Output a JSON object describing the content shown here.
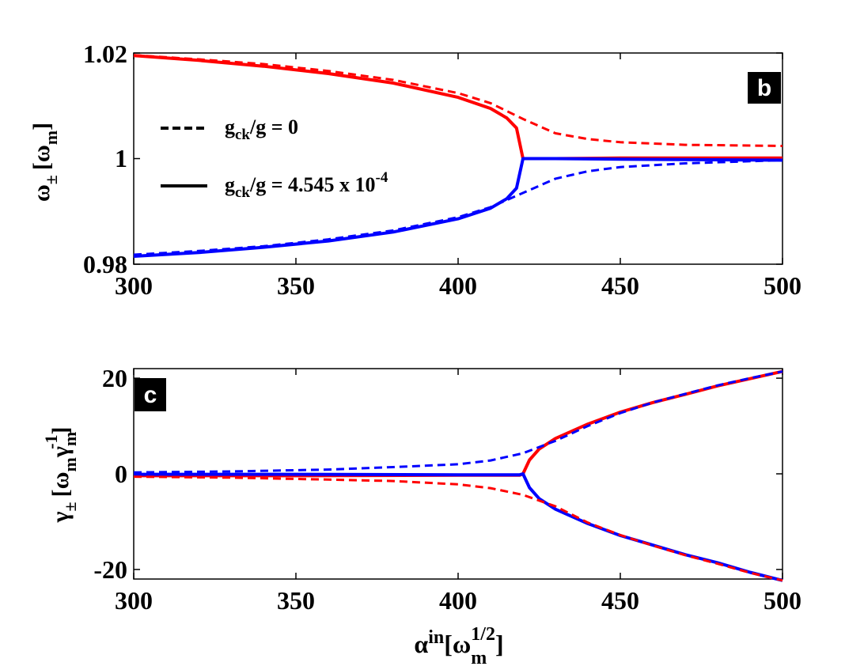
{
  "colors": {
    "upper_branch": "#ff0000",
    "lower_branch": "#0000ff",
    "axes": "#000000",
    "tag_bg": "#000000"
  },
  "chart_data": [
    {
      "type": "line",
      "panel_label": "b",
      "ylabel": {
        "main": "ω",
        "sub": "±",
        "open": "[ω",
        "unit_sub": "m",
        "close": "]"
      },
      "xlim": [
        300,
        500
      ],
      "ylim": [
        0.98,
        1.02
      ],
      "x_ticks": [
        "300",
        "350",
        "400",
        "450",
        "500"
      ],
      "y_ticks": [
        "0.98",
        "1",
        "1.02"
      ],
      "legend": {
        "position": "upper-left",
        "entries": [
          {
            "style": "dashed",
            "main": "g",
            "sub": "ck",
            "rest": "/g = 0",
            "sup": ""
          },
          {
            "style": "solid",
            "main": "g",
            "sub": "ck",
            "rest": "/g = 4.545 x 10",
            "sup": "-4"
          }
        ]
      },
      "series": [
        {
          "style": "solid",
          "color": "red",
          "x": [
            300,
            320,
            340,
            360,
            380,
            400,
            410,
            415,
            418,
            420,
            430,
            450,
            470,
            500
          ],
          "y": [
            1.0195,
            1.0186,
            1.0175,
            1.0161,
            1.0143,
            1.0116,
            1.0095,
            1.0077,
            1.0058,
            1.0,
            1.0,
            1.0001,
            1.0001,
            1.0001
          ]
        },
        {
          "style": "solid",
          "color": "blue",
          "x": [
            300,
            320,
            340,
            360,
            380,
            400,
            410,
            415,
            418,
            420,
            430,
            450,
            470,
            500
          ],
          "y": [
            0.9815,
            0.9822,
            0.9832,
            0.9844,
            0.9861,
            0.9886,
            0.9906,
            0.9924,
            0.9944,
            1.0,
            1.0,
            0.9999,
            0.9998,
            0.9997
          ]
        },
        {
          "style": "dashed",
          "color": "red",
          "x": [
            300,
            320,
            340,
            360,
            380,
            400,
            410,
            420,
            430,
            440,
            450,
            470,
            500
          ],
          "y": [
            1.0196,
            1.0188,
            1.0179,
            1.0166,
            1.0149,
            1.0124,
            1.0105,
            1.0075,
            1.0048,
            1.0037,
            1.0031,
            1.0026,
            1.0024
          ]
        },
        {
          "style": "dashed",
          "color": "blue",
          "x": [
            300,
            320,
            340,
            360,
            380,
            400,
            410,
            420,
            430,
            440,
            450,
            470,
            500
          ],
          "y": [
            0.9818,
            0.9825,
            0.9834,
            0.9847,
            0.9864,
            0.9889,
            0.9908,
            0.9935,
            0.9962,
            0.9976,
            0.9984,
            0.9991,
            0.9997
          ]
        }
      ]
    },
    {
      "type": "line",
      "panel_label": "c",
      "ylabel": {
        "main": "γ",
        "sub": "±",
        "open": "[ω",
        "unit_sub": "m",
        "mid": "γ",
        "unit_sub2": "m",
        "unit_sup2": "-1",
        "close": "]"
      },
      "xlabel": {
        "main": "α",
        "sup": "in",
        "open": "[ω",
        "unit_sub": "m",
        "unit_sup": "1/2",
        "close": "]"
      },
      "xlim": [
        300,
        500
      ],
      "ylim": [
        -22,
        22
      ],
      "x_ticks": [
        "300",
        "350",
        "400",
        "450",
        "500"
      ],
      "y_ticks": [
        "-20",
        "0",
        "20"
      ],
      "series": [
        {
          "style": "solid",
          "color": "red",
          "name": "upper",
          "x": [
            300,
            350,
            400,
            410,
            419,
            420,
            422,
            425,
            430,
            440,
            450,
            460,
            470,
            480,
            490,
            500
          ],
          "y": [
            -0.4,
            -0.4,
            -0.3,
            -0.3,
            -0.3,
            0.0,
            2.9,
            5.2,
            7.4,
            10.4,
            12.9,
            14.9,
            16.6,
            18.4,
            19.9,
            21.4
          ]
        },
        {
          "style": "solid",
          "color": "blue",
          "name": "lower",
          "x": [
            300,
            350,
            400,
            410,
            419,
            420,
            422,
            425,
            430,
            440,
            450,
            460,
            470,
            480,
            490,
            500
          ],
          "y": [
            -0.1,
            -0.1,
            -0.2,
            -0.2,
            -0.2,
            0.0,
            -2.9,
            -5.2,
            -7.4,
            -10.4,
            -12.9,
            -14.9,
            -16.9,
            -18.6,
            -20.6,
            -22.3
          ]
        },
        {
          "style": "dashed",
          "color": "red",
          "x": [
            300,
            330,
            360,
            380,
            400,
            410,
            420,
            430,
            440,
            450,
            460,
            470,
            480,
            490,
            500
          ],
          "y": [
            -0.6,
            -0.8,
            -1.2,
            -1.5,
            -2.2,
            -3.0,
            -4.4,
            -6.8,
            -10.2,
            -12.8,
            -15.0,
            -17.0,
            -18.8,
            -20.7,
            -22.3
          ]
        },
        {
          "style": "dashed",
          "color": "blue",
          "x": [
            300,
            330,
            360,
            380,
            400,
            410,
            420,
            430,
            440,
            450,
            460,
            470,
            480,
            490,
            500
          ],
          "y": [
            0.3,
            0.5,
            0.9,
            1.4,
            2.0,
            2.8,
            4.3,
            6.9,
            10.0,
            12.7,
            14.9,
            16.7,
            18.5,
            20.0,
            21.4
          ]
        }
      ]
    }
  ]
}
